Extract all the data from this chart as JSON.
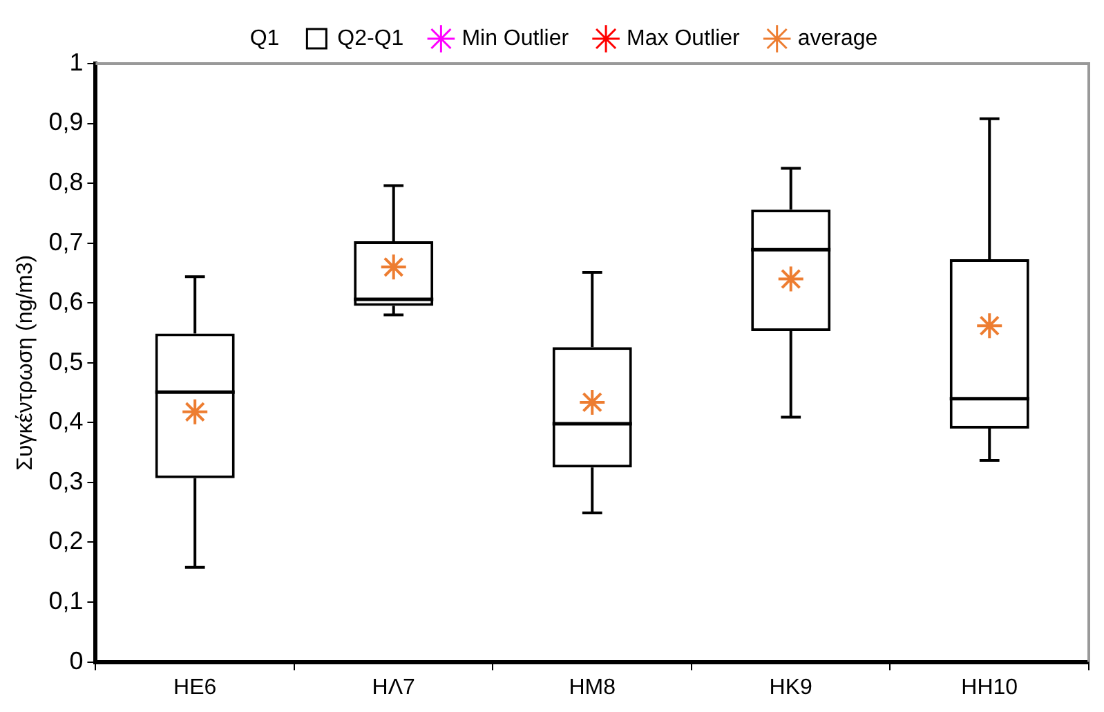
{
  "chart_data": {
    "type": "box",
    "ylabel": "Συγκέντρωση (ng/m3)",
    "categories": [
      "ΗΕ6",
      "ΗΛ7",
      "ΗΜ8",
      "ΗΚ9",
      "ΗΗ10"
    ],
    "ylim": [
      0,
      1
    ],
    "yticks": [
      0,
      {
        "value": 0.1,
        "label": "0,1"
      },
      {
        "value": 0.2,
        "label": "0,2"
      },
      {
        "value": 0.3,
        "label": "0,3"
      },
      {
        "value": 0.4,
        "label": "0,4"
      },
      {
        "value": 0.5,
        "label": "0,5"
      },
      {
        "value": 0.6,
        "label": "0,6"
      },
      {
        "value": 0.7,
        "label": "0,7"
      },
      {
        "value": 0.8,
        "label": "0,8"
      },
      {
        "value": 0.9,
        "label": "0,9"
      },
      1
    ],
    "grid": false,
    "legend": "top",
    "series": [
      {
        "name": "Q1",
        "type": "bar",
        "values": [
          null,
          null,
          null,
          null,
          null
        ]
      },
      {
        "name": "Q2-Q1",
        "color": "#000000",
        "boxes": [
          {
            "low": 0.158,
            "q1": 0.307,
            "median": 0.451,
            "q3": 0.549,
            "high": 0.644
          },
          {
            "low": 0.58,
            "q1": 0.595,
            "median": 0.606,
            "q3": 0.703,
            "high": 0.796
          },
          {
            "low": 0.249,
            "q1": 0.325,
            "median": 0.398,
            "q3": 0.526,
            "high": 0.651
          },
          {
            "low": 0.409,
            "q1": 0.553,
            "median": 0.689,
            "q3": 0.756,
            "high": 0.825
          },
          {
            "low": 0.337,
            "q1": 0.39,
            "median": 0.44,
            "q3": 0.673,
            "high": 0.908
          }
        ]
      },
      {
        "name": "Min Outlier",
        "type": "scatter",
        "color": "#ff00ff",
        "values": [
          null,
          null,
          null,
          null,
          null
        ]
      },
      {
        "name": "Max Outlier",
        "type": "scatter",
        "color": "#ff0000",
        "values": [
          null,
          null,
          null,
          null,
          null
        ]
      },
      {
        "name": "average",
        "type": "scatter",
        "color": "#ed7d31",
        "values": [
          0.418,
          0.66,
          0.434,
          0.64,
          0.562
        ]
      }
    ]
  }
}
